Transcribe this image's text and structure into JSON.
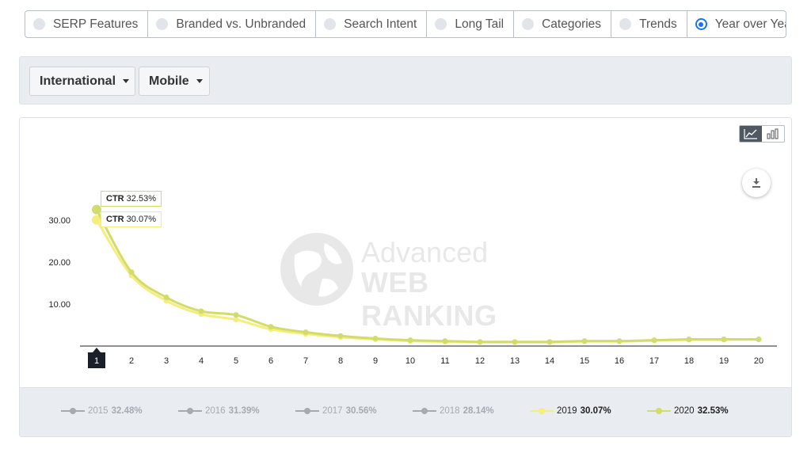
{
  "tabs": [
    {
      "label": "SERP Features",
      "active": false
    },
    {
      "label": "Branded vs. Unbranded",
      "active": false
    },
    {
      "label": "Search Intent",
      "active": false
    },
    {
      "label": "Long Tail",
      "active": false
    },
    {
      "label": "Categories",
      "active": false
    },
    {
      "label": "Trends",
      "active": false
    },
    {
      "label": "Year over Year",
      "active": true
    }
  ],
  "filters": {
    "region": "International",
    "device": "Mobile"
  },
  "watermark": {
    "line1": "Advanced",
    "line2": "WEB RANKING"
  },
  "tooltips": [
    {
      "label": "CTR",
      "value": "32.53%",
      "series": "2020"
    },
    {
      "label": "CTR",
      "value": "30.07%",
      "series": "2019"
    }
  ],
  "icons": {
    "line_view": "line-chart-icon",
    "bar_view": "bar-chart-icon",
    "download": "download-icon"
  },
  "colors": {
    "series_2019": "#f5ee7a",
    "series_2020": "#d2dc6e",
    "hidden_series": "#a6abb2",
    "accent": "#1a73e8"
  },
  "legend": [
    {
      "year": "2015",
      "value": "32.48%",
      "visible": false
    },
    {
      "year": "2016",
      "value": "31.39%",
      "visible": false
    },
    {
      "year": "2017",
      "value": "30.56%",
      "visible": false
    },
    {
      "year": "2018",
      "value": "28.14%",
      "visible": false
    },
    {
      "year": "2019",
      "value": "30.07%",
      "visible": true
    },
    {
      "year": "2020",
      "value": "32.53%",
      "visible": true
    }
  ],
  "chart_data": {
    "type": "line",
    "x": [
      1,
      2,
      3,
      4,
      5,
      6,
      7,
      8,
      9,
      10,
      11,
      12,
      13,
      14,
      15,
      16,
      17,
      18,
      19,
      20
    ],
    "x_tick_labels": [
      "1",
      "2",
      "3",
      "4",
      "5",
      "6",
      "7",
      "8",
      "9",
      "10",
      "11",
      "12",
      "13",
      "14",
      "15",
      "16",
      "17",
      "18",
      "19",
      "20"
    ],
    "selected_x": 1,
    "y_ticks": [
      "10.00",
      "20.00",
      "30.00"
    ],
    "ylim": [
      0,
      32.53
    ],
    "grid": false,
    "legend_position": "bottom",
    "series": [
      {
        "name": "2019",
        "color": "#f5ee7a",
        "values": [
          30.07,
          16.8,
          10.8,
          7.6,
          6.3,
          4.0,
          2.9,
          2.1,
          1.6,
          1.2,
          1.0,
          0.9,
          0.9,
          0.9,
          1.1,
          1.1,
          1.3,
          1.5,
          1.5,
          1.6
        ]
      },
      {
        "name": "2020",
        "color": "#d2dc6e",
        "values": [
          32.53,
          17.6,
          11.6,
          8.3,
          7.4,
          4.6,
          3.3,
          2.4,
          1.8,
          1.4,
          1.2,
          1.0,
          1.0,
          1.0,
          1.2,
          1.2,
          1.4,
          1.6,
          1.6,
          1.6
        ]
      }
    ]
  }
}
